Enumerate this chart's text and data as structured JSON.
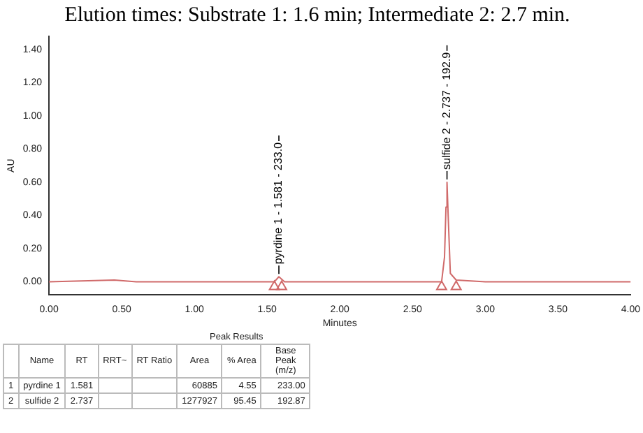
{
  "chart_data": {
    "type": "line",
    "title": "Elution times: Substrate 1: 1.6 min; Intermediate 2: 2.7 min.",
    "xlabel": "Minutes",
    "ylabel": "AU",
    "series": [
      {
        "color": "#d06a6a",
        "x": [
          0,
          0.45,
          0.6,
          1.5,
          1.55,
          1.581,
          1.62,
          2.6,
          2.7,
          2.72,
          2.73,
          2.737,
          2.745,
          2.76,
          2.8,
          3.0,
          4.0
        ],
        "values": [
          0,
          0.01,
          0,
          0,
          0,
          0.03,
          0,
          0,
          0,
          0.15,
          0.45,
          0.6,
          0.4,
          0.05,
          0.01,
          0,
          0
        ]
      },
      {
        "type": "scatter",
        "color": "#d06a6a",
        "marker": "triangle",
        "x": [
          1.55,
          1.6,
          2.7,
          2.8
        ],
        "values": [
          -0.03,
          -0.03,
          -0.03,
          -0.03
        ]
      }
    ],
    "xlim": [
      0,
      4
    ],
    "ylim": [
      -0.08,
      1.48
    ],
    "xticks": [
      {
        "value": 0,
        "label": "0.00"
      },
      {
        "value": 0.5,
        "label": "0.50"
      },
      {
        "value": 1,
        "label": "1.00"
      },
      {
        "value": 1.5,
        "label": "1.50"
      },
      {
        "value": 2,
        "label": "2.00"
      },
      {
        "value": 2.5,
        "label": "2.50"
      },
      {
        "value": 3,
        "label": "3.00"
      },
      {
        "value": 3.5,
        "label": "3.50"
      },
      {
        "value": 4,
        "label": "4.00"
      }
    ],
    "yticks": [
      {
        "value": 0,
        "label": "0.00"
      },
      {
        "value": 0.2,
        "label": "0.20"
      },
      {
        "value": 0.4,
        "label": "0.40"
      },
      {
        "value": 0.6,
        "label": "0.60"
      },
      {
        "value": 0.8,
        "label": "0.80"
      },
      {
        "value": 1,
        "label": "1.00"
      },
      {
        "value": 1.2,
        "label": "1.20"
      },
      {
        "value": 1.4,
        "label": "1.40"
      }
    ],
    "grid": false,
    "legend": false,
    "annotations": [
      {
        "text": "pyrdine 1 - 1.581 - 233.0",
        "x": 1.581,
        "y": 0.03
      },
      {
        "text": "sulfide 2 - 2.737 - 192.9",
        "x": 2.737,
        "y": 0.6
      },
      "Peak Results",
      null,
      "Name",
      "RT",
      "RRT~",
      "RT Ratio",
      "Area",
      "% Area",
      "Base Peak (m/z)",
      "1",
      "pyrdine 1",
      "1.581",
      null,
      null,
      "60885",
      "4.55",
      "233.00",
      "2",
      "sulfide 2",
      "2.737",
      null,
      null,
      "1277927",
      "95.45",
      "192.87"
    ]
  }
}
